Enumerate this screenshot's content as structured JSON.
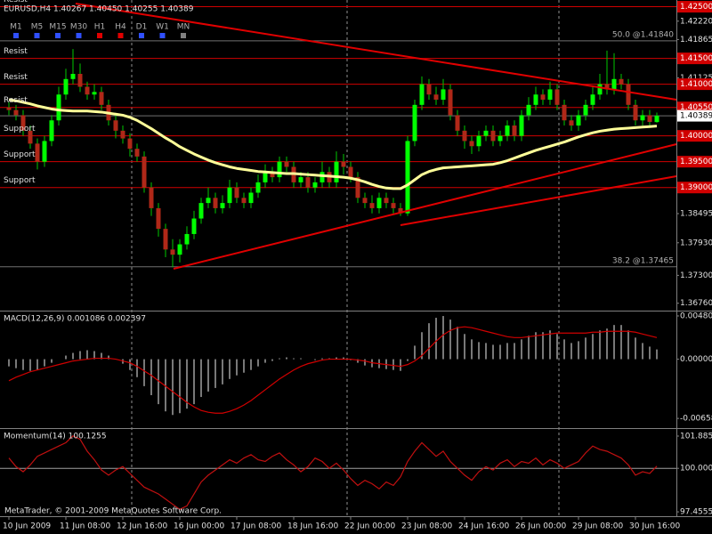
{
  "toolbar": {
    "timeframes": [
      {
        "label": "M1",
        "color": "#3050ff"
      },
      {
        "label": "M5",
        "color": "#3050ff"
      },
      {
        "label": "M15",
        "color": "#3050ff"
      },
      {
        "label": "M30",
        "color": "#3050ff"
      },
      {
        "label": "H1",
        "color": "#e00000"
      },
      {
        "label": "H4",
        "color": "#e00000"
      },
      {
        "label": "D1",
        "color": "#3050ff"
      },
      {
        "label": "W1",
        "color": "#3050ff"
      },
      {
        "label": "MN",
        "color": "#808080"
      }
    ]
  },
  "footer": "MetaTrader, © 2001-2009 MetaQuotes Software Corp.",
  "chart_data": [
    {
      "type": "candlestick",
      "title": "EURUSD,H4  1.40267 1.40450 1.40255 1.40389",
      "categories": [
        "10 Jun 2009",
        null,
        null,
        null,
        null,
        null,
        null,
        null,
        "11 Jun 08:00",
        null,
        null,
        null,
        null,
        null,
        null,
        null,
        "12 Jun 16:00",
        null,
        null,
        null,
        null,
        null,
        null,
        null,
        "16 Jun 00:00",
        null,
        null,
        null,
        null,
        null,
        null,
        null,
        "17 Jun 08:00",
        null,
        null,
        null,
        null,
        null,
        null,
        null,
        "18 Jun 16:00",
        null,
        null,
        null,
        null,
        null,
        null,
        null,
        "22 Jun 00:00",
        null,
        null,
        null,
        null,
        null,
        null,
        null,
        "23 Jun 08:00",
        null,
        null,
        null,
        null,
        null,
        null,
        null,
        "24 Jun 16:00",
        null,
        null,
        null,
        null,
        null,
        null,
        null,
        "26 Jun 00:00",
        null,
        null,
        null,
        null,
        null,
        null,
        null,
        "29 Jun 08:00",
        null,
        null,
        null,
        null,
        null,
        null,
        null,
        "30 Jun 16:00",
        null,
        null,
        null
      ],
      "open": [
        1.4055,
        1.405,
        1.404,
        1.401,
        1.3985,
        1.395,
        1.399,
        1.403,
        1.408,
        1.411,
        1.412,
        1.4095,
        1.408,
        1.4085,
        1.406,
        1.403,
        1.401,
        1.3995,
        1.3975,
        1.396,
        1.39,
        1.386,
        1.382,
        1.378,
        1.377,
        1.379,
        1.381,
        1.384,
        1.387,
        1.388,
        1.386,
        1.387,
        1.39,
        1.388,
        1.387,
        1.389,
        1.391,
        1.393,
        1.392,
        1.395,
        1.394,
        1.391,
        1.392,
        1.39,
        1.391,
        1.393,
        1.391,
        1.395,
        1.394,
        1.392,
        1.388,
        1.387,
        1.386,
        1.388,
        1.387,
        1.386,
        1.385,
        1.399,
        1.406,
        1.41,
        1.408,
        1.407,
        1.409,
        1.404,
        1.401,
        1.399,
        1.398,
        1.4,
        1.401,
        1.399,
        1.4,
        1.402,
        1.4,
        1.404,
        1.406,
        1.408,
        1.407,
        1.409,
        1.406,
        1.403,
        1.402,
        1.404,
        1.406,
        1.408,
        1.41,
        1.409,
        1.411,
        1.41,
        1.406,
        1.403,
        1.404,
        1.40267
      ],
      "high": [
        1.4065,
        1.406,
        1.405,
        1.402,
        1.3995,
        1.4,
        1.404,
        1.4095,
        1.413,
        1.4168,
        1.414,
        1.4105,
        1.41,
        1.4095,
        1.407,
        1.404,
        1.402,
        1.4005,
        1.3985,
        1.397,
        1.391,
        1.387,
        1.383,
        1.38,
        1.38,
        1.3825,
        1.3855,
        1.388,
        1.39,
        1.389,
        1.3885,
        1.3915,
        1.391,
        1.389,
        1.39,
        1.3925,
        1.3945,
        1.394,
        1.396,
        1.396,
        1.395,
        1.393,
        1.393,
        1.392,
        1.395,
        1.394,
        1.397,
        1.3965,
        1.395,
        1.393,
        1.389,
        1.3885,
        1.389,
        1.389,
        1.388,
        1.387,
        1.4,
        1.407,
        1.4115,
        1.411,
        1.4095,
        1.411,
        1.41,
        1.405,
        1.402,
        1.4,
        1.401,
        1.402,
        1.402,
        1.401,
        1.403,
        1.403,
        1.405,
        1.4075,
        1.4095,
        1.409,
        1.4105,
        1.41,
        1.407,
        1.404,
        1.405,
        1.407,
        1.4095,
        1.412,
        1.4165,
        1.416,
        1.412,
        1.411,
        1.407,
        1.405,
        1.405,
        1.4045
      ],
      "low": [
        1.404,
        1.403,
        1.4,
        1.3975,
        1.3935,
        1.394,
        1.398,
        1.402,
        1.407,
        1.41,
        1.4085,
        1.407,
        1.407,
        1.405,
        1.402,
        1.3995,
        1.3985,
        1.396,
        1.395,
        1.389,
        1.3845,
        1.3805,
        1.3765,
        1.3746,
        1.3755,
        1.378,
        1.38,
        1.383,
        1.386,
        1.385,
        1.385,
        1.386,
        1.387,
        1.386,
        1.386,
        1.388,
        1.39,
        1.391,
        1.391,
        1.393,
        1.39,
        1.39,
        1.389,
        1.389,
        1.39,
        1.39,
        1.39,
        1.3925,
        1.391,
        1.387,
        1.386,
        1.385,
        1.385,
        1.386,
        1.385,
        1.3845,
        1.3845,
        1.398,
        1.405,
        1.407,
        1.406,
        1.406,
        1.403,
        1.4,
        1.3975,
        1.3965,
        1.397,
        1.399,
        1.398,
        1.398,
        1.399,
        1.399,
        1.399,
        1.403,
        1.405,
        1.406,
        1.406,
        1.405,
        1.402,
        1.401,
        1.401,
        1.403,
        1.405,
        1.407,
        1.408,
        1.408,
        1.409,
        1.405,
        1.402,
        1.402,
        1.402,
        1.40255
      ],
      "close": [
        1.405,
        1.404,
        1.401,
        1.3985,
        1.395,
        1.399,
        1.403,
        1.408,
        1.411,
        1.412,
        1.4095,
        1.408,
        1.4085,
        1.406,
        1.403,
        1.401,
        1.3995,
        1.3975,
        1.396,
        1.39,
        1.386,
        1.382,
        1.378,
        1.377,
        1.379,
        1.381,
        1.384,
        1.387,
        1.388,
        1.386,
        1.387,
        1.39,
        1.388,
        1.387,
        1.389,
        1.391,
        1.393,
        1.392,
        1.395,
        1.394,
        1.391,
        1.392,
        1.39,
        1.391,
        1.393,
        1.391,
        1.395,
        1.394,
        1.392,
        1.388,
        1.387,
        1.386,
        1.388,
        1.387,
        1.386,
        1.385,
        1.399,
        1.406,
        1.41,
        1.408,
        1.407,
        1.409,
        1.404,
        1.401,
        1.399,
        1.398,
        1.4,
        1.401,
        1.399,
        1.4,
        1.402,
        1.4,
        1.404,
        1.406,
        1.408,
        1.407,
        1.409,
        1.406,
        1.403,
        1.402,
        1.404,
        1.406,
        1.408,
        1.41,
        1.409,
        1.411,
        1.41,
        1.406,
        1.403,
        1.404,
        1.4027,
        1.40389
      ],
      "up_color": "#00ff00",
      "down_color": "#b02818",
      "wick_color": "#00c800",
      "moving_average": {
        "color": "#ffff99",
        "values": [
          1.407,
          1.4068,
          1.4065,
          1.4062,
          1.4058,
          1.4055,
          1.4052,
          1.405,
          1.4049,
          1.4048,
          1.4048,
          1.4048,
          1.4047,
          1.4046,
          1.4044,
          1.4042,
          1.404,
          1.4036,
          1.403,
          1.4022,
          1.4014,
          1.4005,
          1.3996,
          1.3988,
          1.3979,
          1.3972,
          1.3965,
          1.3959,
          1.3953,
          1.3948,
          1.3944,
          1.394,
          1.3937,
          1.3935,
          1.3933,
          1.3931,
          1.393,
          1.3929,
          1.3928,
          1.3927,
          1.3927,
          1.3926,
          1.3925,
          1.3924,
          1.3923,
          1.3922,
          1.3921,
          1.392,
          1.3918,
          1.3915,
          1.3911,
          1.3906,
          1.3902,
          1.3899,
          1.3898,
          1.3898,
          1.3905,
          1.3915,
          1.3925,
          1.3931,
          1.3935,
          1.3938,
          1.3939,
          1.394,
          1.3941,
          1.3942,
          1.3943,
          1.3944,
          1.3945,
          1.3948,
          1.3952,
          1.3957,
          1.3962,
          1.3967,
          1.3972,
          1.3976,
          1.398,
          1.3984,
          1.3988,
          1.3993,
          1.3998,
          1.4002,
          1.4006,
          1.4009,
          1.4011,
          1.4013,
          1.4014,
          1.4015,
          1.4016,
          1.4017,
          1.4018,
          1.4019
        ]
      },
      "levels": [
        {
          "label": "Resist",
          "value": 1.425,
          "value_label": "1.42500"
        },
        {
          "label": "Resist",
          "value": 1.415,
          "value_label": "1.41500"
        },
        {
          "label": "Resist",
          "value": 1.41,
          "value_label": "1.41000"
        },
        {
          "label": "Resist",
          "value": 1.4055,
          "value_label": "1.40550"
        },
        {
          "label": "Support",
          "value": 1.4,
          "value_label": "1.40000"
        },
        {
          "label": "Support",
          "value": 1.395,
          "value_label": "1.39500"
        },
        {
          "label": "Support",
          "value": 1.39,
          "value_label": "1.39000"
        }
      ],
      "level_color": "#d00000",
      "fibo": [
        {
          "label": "50.0 @1.41840",
          "value": 1.4184
        },
        {
          "label": "38.2 @1.37465",
          "value": 1.37465
        }
      ],
      "ylim": [
        1.366,
        1.4263
      ],
      "yticks": [
        {
          "value": 1.4222,
          "label": "1.42220"
        },
        1.41865,
        1.41125,
        1.38495,
        {
          "value": 1.3793,
          "label": "1.37930"
        },
        {
          "value": 1.373,
          "label": "1.37300"
        },
        {
          "value": 1.3676,
          "label": "1.36760"
        }
      ]
    },
    {
      "type": "macd",
      "title": "MACD(12,26,9) 0.001086 0.002397",
      "values": [
        -0.0008,
        -0.001,
        -0.0012,
        -0.0013,
        -0.0012,
        -0.0008,
        -0.0004,
        0,
        0.0004,
        0.0007,
        0.0009,
        0.001,
        0.0009,
        0.0007,
        0.0004,
        0,
        -0.0005,
        -0.0012,
        -0.002,
        -0.003,
        -0.004,
        -0.005,
        -0.0058,
        -0.0062,
        -0.006,
        -0.0055,
        -0.005,
        -0.0042,
        -0.0036,
        -0.0032,
        -0.0028,
        -0.0022,
        -0.0018,
        -0.0015,
        -0.0012,
        -0.0008,
        -0.0004,
        -0.0002,
        0.0001,
        0.0002,
        0.0001,
        0.0001,
        0,
        -0.0001,
        0.0001,
        0.0001,
        0.0002,
        0.0002,
        -0.0001,
        -0.0004,
        -0.0007,
        -0.0009,
        -0.001,
        -0.0011,
        -0.0012,
        -0.0013,
        -0.0002,
        0.0015,
        0.003,
        0.004,
        0.0046,
        0.0048,
        0.0044,
        0.0036,
        0.0028,
        0.0022,
        0.0019,
        0.0018,
        0.0016,
        0.0016,
        0.0018,
        0.0018,
        0.0022,
        0.0026,
        0.003,
        0.003,
        0.0032,
        0.0028,
        0.0022,
        0.0018,
        0.002,
        0.0024,
        0.0028,
        0.0032,
        0.0034,
        0.0038,
        0.0038,
        0.0032,
        0.0024,
        0.0018,
        0.0014,
        0.001086
      ],
      "color": "#c8c8c8",
      "signal": {
        "color": "#d00000",
        "values": [
          -0.0024,
          -0.002,
          -0.0017,
          -0.0014,
          -0.0012,
          -0.001,
          -0.0008,
          -0.0006,
          -0.0004,
          -0.0002,
          -0.0001,
          0,
          0.0001,
          0.0001,
          0.0001,
          0,
          -0.0002,
          -0.0004,
          -0.0008,
          -0.0013,
          -0.0018,
          -0.0024,
          -0.003,
          -0.0036,
          -0.0042,
          -0.0048,
          -0.0053,
          -0.0057,
          -0.0059,
          -0.006,
          -0.006,
          -0.0058,
          -0.0055,
          -0.0051,
          -0.0046,
          -0.004,
          -0.0034,
          -0.0028,
          -0.0022,
          -0.0017,
          -0.0012,
          -0.0008,
          -0.0005,
          -0.0003,
          -0.0001,
          0,
          0,
          0,
          0,
          -0.0001,
          -0.0002,
          -0.0004,
          -0.0005,
          -0.0006,
          -0.0007,
          -0.0008,
          -0.0006,
          -0.0002,
          0.0004,
          0.0012,
          0.002,
          0.0027,
          0.0032,
          0.0035,
          0.0036,
          0.0035,
          0.0033,
          0.0031,
          0.0029,
          0.0027,
          0.0025,
          0.0024,
          0.0024,
          0.0025,
          0.0026,
          0.0027,
          0.0028,
          0.0029,
          0.0029,
          0.0029,
          0.0029,
          0.0029,
          0.003,
          0.003,
          0.0031,
          0.0031,
          0.0031,
          0.0031,
          0.003,
          0.0028,
          0.0026,
          0.002397
        ]
      },
      "ylim": [
        -0.00756,
        0.0053
      ],
      "yticks": [
        0.004808,
        {
          "value": 0,
          "label": "0.000000"
        },
        {
          "value": -0.006583,
          "label": "-0.006583"
        }
      ]
    },
    {
      "type": "line",
      "title": "Momentum(14) 100.1255",
      "color": "#c01010",
      "level": 100,
      "values": [
        100.6,
        100.1,
        99.8,
        100.2,
        100.7,
        100.9,
        101.1,
        101.3,
        101.5,
        101.9,
        101.7,
        101,
        100.5,
        99.9,
        99.6,
        99.9,
        100.1,
        99.7,
        99.3,
        98.9,
        98.7,
        98.5,
        98.2,
        97.9,
        97.6,
        97.8,
        98.5,
        99.2,
        99.6,
        99.9,
        100.2,
        100.5,
        100.3,
        100.6,
        100.8,
        100.5,
        100.4,
        100.7,
        100.9,
        100.5,
        100.2,
        99.8,
        100.1,
        100.6,
        100.4,
        100,
        100.3,
        99.9,
        99.4,
        99,
        99.3,
        99.1,
        98.8,
        99.2,
        99,
        99.5,
        100.4,
        101,
        101.5,
        101.1,
        100.7,
        101,
        100.4,
        100,
        99.6,
        99.3,
        99.8,
        100.1,
        99.9,
        100.3,
        100.5,
        100.1,
        100.4,
        100.3,
        100.6,
        100.2,
        100.5,
        100.3,
        100,
        100.2,
        100.4,
        100.9,
        101.3,
        101.1,
        101,
        100.8,
        100.6,
        100.2,
        99.6,
        99.8,
        99.7,
        100.1255
      ],
      "ylim": [
        97.2,
        102.3
      ],
      "yticks": [
        101.8855,
        {
          "value": 100,
          "label": "100.0000"
        },
        97.4555
      ]
    }
  ]
}
